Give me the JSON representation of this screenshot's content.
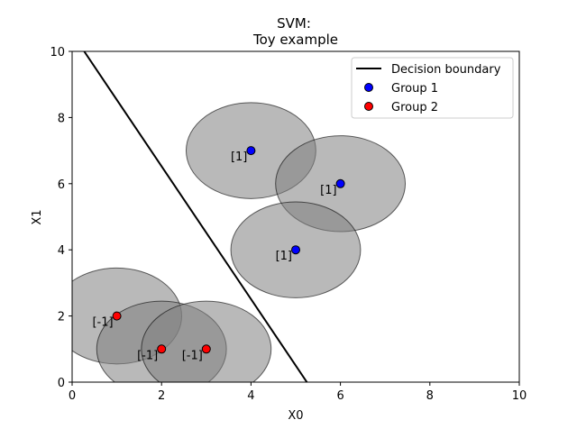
{
  "chart_data": {
    "type": "scatter",
    "title": "SVM:",
    "subtitle": "Toy example",
    "xlabel": "X0",
    "ylabel": "X1",
    "xlim": [
      0,
      10
    ],
    "ylim": [
      0,
      10
    ],
    "xticks": [
      "0",
      "2",
      "4",
      "6",
      "8",
      "10"
    ],
    "yticks": [
      "0",
      "2",
      "4",
      "6",
      "8",
      "10"
    ],
    "grid": false,
    "legend_position": "top-right",
    "decision_boundary": {
      "name": "Decision boundary",
      "color": "#000000",
      "points": [
        [
          0.27,
          10
        ],
        [
          5.25,
          0
        ]
      ]
    },
    "circle_radius": 1.45,
    "circle_color": "#808080",
    "series": [
      {
        "name": "Group 1",
        "color": "#0000ff",
        "points": [
          {
            "x": 4,
            "y": 7,
            "label": "[1]"
          },
          {
            "x": 6,
            "y": 6,
            "label": "[1]"
          },
          {
            "x": 5,
            "y": 4,
            "label": "[1]"
          }
        ]
      },
      {
        "name": "Group 2",
        "color": "#ff0000",
        "points": [
          {
            "x": 1,
            "y": 2,
            "label": "[-1]"
          },
          {
            "x": 2,
            "y": 1,
            "label": "[-1]"
          },
          {
            "x": 3,
            "y": 1,
            "label": "[-1]"
          }
        ]
      }
    ]
  }
}
